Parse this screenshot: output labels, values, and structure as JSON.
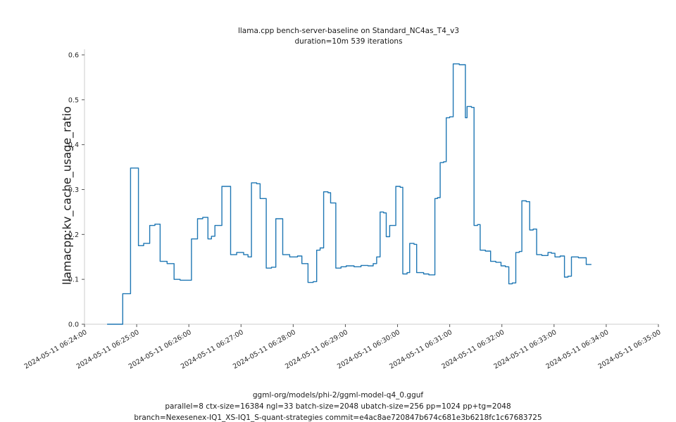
{
  "chart_data": {
    "type": "line",
    "step": true,
    "title": "llama.cpp bench-server-baseline on Standard_NC4as_T4_v3",
    "subtitle": "duration=10m 539 iterations",
    "xlabel": "",
    "ylabel": "llamacpp:kv_cache_usage_ratio",
    "line_color": "#1f77b4",
    "grid": false,
    "legend": "none",
    "xlim": [
      0,
      660
    ],
    "ylim": [
      0,
      0.6
    ],
    "y_ticks": [
      0.0,
      0.1,
      0.2,
      0.3,
      0.4,
      0.5,
      0.6
    ],
    "x_unit": "seconds since 2024-05-11 06:24:00",
    "x_ticks": [
      {
        "t": 0,
        "label": "2024-05-11 06:24:00"
      },
      {
        "t": 60,
        "label": "2024-05-11 06:25:00"
      },
      {
        "t": 120,
        "label": "2024-05-11 06:26:00"
      },
      {
        "t": 180,
        "label": "2024-05-11 06:27:00"
      },
      {
        "t": 240,
        "label": "2024-05-11 06:28:00"
      },
      {
        "t": 300,
        "label": "2024-05-11 06:29:00"
      },
      {
        "t": 360,
        "label": "2024-05-11 06:30:00"
      },
      {
        "t": 420,
        "label": "2024-05-11 06:31:00"
      },
      {
        "t": 480,
        "label": "2024-05-11 06:32:00"
      },
      {
        "t": 540,
        "label": "2024-05-11 06:33:00"
      },
      {
        "t": 600,
        "label": "2024-05-11 06:34:00"
      },
      {
        "t": 660,
        "label": "2024-05-11 06:35:00"
      }
    ],
    "points": [
      [
        26,
        0.0
      ],
      [
        44,
        0.068
      ],
      [
        53,
        0.348
      ],
      [
        62,
        0.175
      ],
      [
        68,
        0.18
      ],
      [
        75,
        0.22
      ],
      [
        81,
        0.223
      ],
      [
        87,
        0.14
      ],
      [
        95,
        0.135
      ],
      [
        103,
        0.1
      ],
      [
        110,
        0.098
      ],
      [
        123,
        0.19
      ],
      [
        130,
        0.235
      ],
      [
        136,
        0.238
      ],
      [
        142,
        0.19
      ],
      [
        146,
        0.196
      ],
      [
        150,
        0.22
      ],
      [
        158,
        0.307
      ],
      [
        168,
        0.155
      ],
      [
        175,
        0.16
      ],
      [
        183,
        0.155
      ],
      [
        188,
        0.15
      ],
      [
        192,
        0.315
      ],
      [
        198,
        0.313
      ],
      [
        202,
        0.28
      ],
      [
        209,
        0.125
      ],
      [
        215,
        0.127
      ],
      [
        220,
        0.235
      ],
      [
        228,
        0.155
      ],
      [
        236,
        0.15
      ],
      [
        245,
        0.152
      ],
      [
        250,
        0.135
      ],
      [
        257,
        0.093
      ],
      [
        263,
        0.095
      ],
      [
        267,
        0.165
      ],
      [
        271,
        0.17
      ],
      [
        275,
        0.295
      ],
      [
        280,
        0.293
      ],
      [
        283,
        0.27
      ],
      [
        289,
        0.125
      ],
      [
        295,
        0.128
      ],
      [
        301,
        0.13
      ],
      [
        310,
        0.128
      ],
      [
        318,
        0.131
      ],
      [
        326,
        0.13
      ],
      [
        332,
        0.135
      ],
      [
        336,
        0.15
      ],
      [
        340,
        0.25
      ],
      [
        344,
        0.248
      ],
      [
        347,
        0.195
      ],
      [
        351,
        0.22
      ],
      [
        358,
        0.307
      ],
      [
        363,
        0.305
      ],
      [
        366,
        0.112
      ],
      [
        371,
        0.115
      ],
      [
        374,
        0.18
      ],
      [
        379,
        0.178
      ],
      [
        382,
        0.115
      ],
      [
        390,
        0.112
      ],
      [
        396,
        0.11
      ],
      [
        403,
        0.28
      ],
      [
        406,
        0.282
      ],
      [
        409,
        0.36
      ],
      [
        413,
        0.362
      ],
      [
        416,
        0.46
      ],
      [
        420,
        0.462
      ],
      [
        424,
        0.58
      ],
      [
        431,
        0.578
      ],
      [
        438,
        0.46
      ],
      [
        440,
        0.485
      ],
      [
        445,
        0.483
      ],
      [
        448,
        0.22
      ],
      [
        452,
        0.222
      ],
      [
        455,
        0.165
      ],
      [
        461,
        0.163
      ],
      [
        467,
        0.14
      ],
      [
        473,
        0.138
      ],
      [
        479,
        0.13
      ],
      [
        484,
        0.128
      ],
      [
        488,
        0.09
      ],
      [
        492,
        0.092
      ],
      [
        496,
        0.16
      ],
      [
        500,
        0.162
      ],
      [
        503,
        0.275
      ],
      [
        508,
        0.273
      ],
      [
        512,
        0.21
      ],
      [
        516,
        0.212
      ],
      [
        520,
        0.155
      ],
      [
        526,
        0.153
      ],
      [
        533,
        0.16
      ],
      [
        537,
        0.158
      ],
      [
        541,
        0.15
      ],
      [
        547,
        0.152
      ],
      [
        552,
        0.105
      ],
      [
        556,
        0.107
      ],
      [
        560,
        0.15
      ],
      [
        568,
        0.148
      ],
      [
        577,
        0.133
      ],
      [
        583,
        0.133
      ]
    ],
    "annotations": [
      "ggml-org/models/phi-2/ggml-model-q4_0.gguf",
      "parallel=8 ctx-size=16384 ngl=33 batch-size=2048 ubatch-size=256 pp=1024 pp+tg=2048",
      "branch=Nexesenex-IQ1_XS-IQ1_S-quant-strategies commit=e4ac8ae720847b674c681e3b6218fc1c67683725"
    ]
  }
}
